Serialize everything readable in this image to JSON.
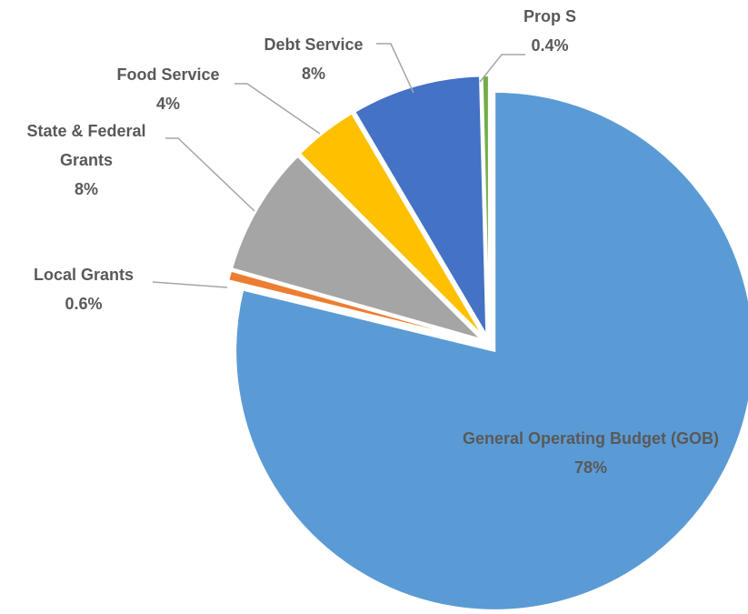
{
  "chart_data": {
    "type": "pie",
    "categories": [
      "General Operating Budget (GOB)",
      "Local Grants",
      "State & Federal Grants",
      "Food Service",
      "Debt Service",
      "Prop S"
    ],
    "values": [
      78,
      0.6,
      8,
      4,
      8,
      0.4
    ],
    "value_labels": [
      "78%",
      "0.6%",
      "8%",
      "4%",
      "8%",
      "0.4%"
    ],
    "colors": [
      "#5b9bd5",
      "#ed7d31",
      "#a5a5a5",
      "#ffc000",
      "#4472c4",
      "#70ad47"
    ]
  }
}
